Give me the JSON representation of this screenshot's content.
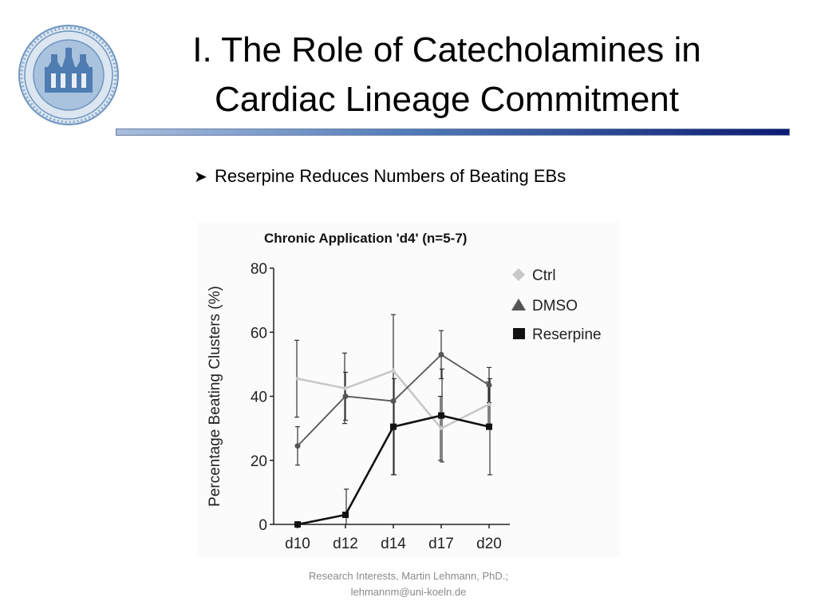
{
  "slide": {
    "title_line1": "I. The Role of Catecholamines in",
    "title_line2": "Cardiac Lineage Commitment",
    "bullet": "Reserpine Reduces Numbers of Beating EBs",
    "footer_line1": "Research Interests, Martin Lehmann, PhD.;",
    "footer_line2": "lehmannm@uni-koeln.de",
    "colors": {
      "title_rule_end": "#0d1a72",
      "title_rule_start": "#a9bfdc"
    },
    "logo_icon": "university-seal-icon"
  },
  "chart_data": {
    "type": "line",
    "title": "Chronic Application 'd4' (n=5-7)",
    "ylabel": "Percentage Beating Clusters (%)",
    "xlabel": "",
    "categories": [
      "d10",
      "d12",
      "d14",
      "d17",
      "d20"
    ],
    "yticks": [
      0,
      20,
      40,
      60,
      80
    ],
    "ylim": [
      0,
      80
    ],
    "legend_position": "right",
    "series": [
      {
        "name": "Ctrl",
        "marker": "diamond",
        "color": "#c8c8c8",
        "values": [
          45.5,
          42.5,
          48,
          30,
          37.5
        ],
        "error": [
          12,
          11,
          0,
          10,
          7
        ]
      },
      {
        "name": "DMSO",
        "marker": "triangle",
        "color": "#555555",
        "values": [
          24.5,
          40,
          38.5,
          53,
          43.5
        ],
        "error": [
          6,
          7.5,
          0,
          7.5,
          5.5
        ]
      },
      {
        "name": "Reserpine",
        "marker": "square",
        "color": "#111111",
        "values": [
          0,
          3,
          30.5,
          34,
          30.5
        ],
        "error": [
          0,
          8,
          15,
          14.5,
          15
        ]
      }
    ],
    "d14_shared_error": [
      15.5,
      65.5
    ]
  }
}
